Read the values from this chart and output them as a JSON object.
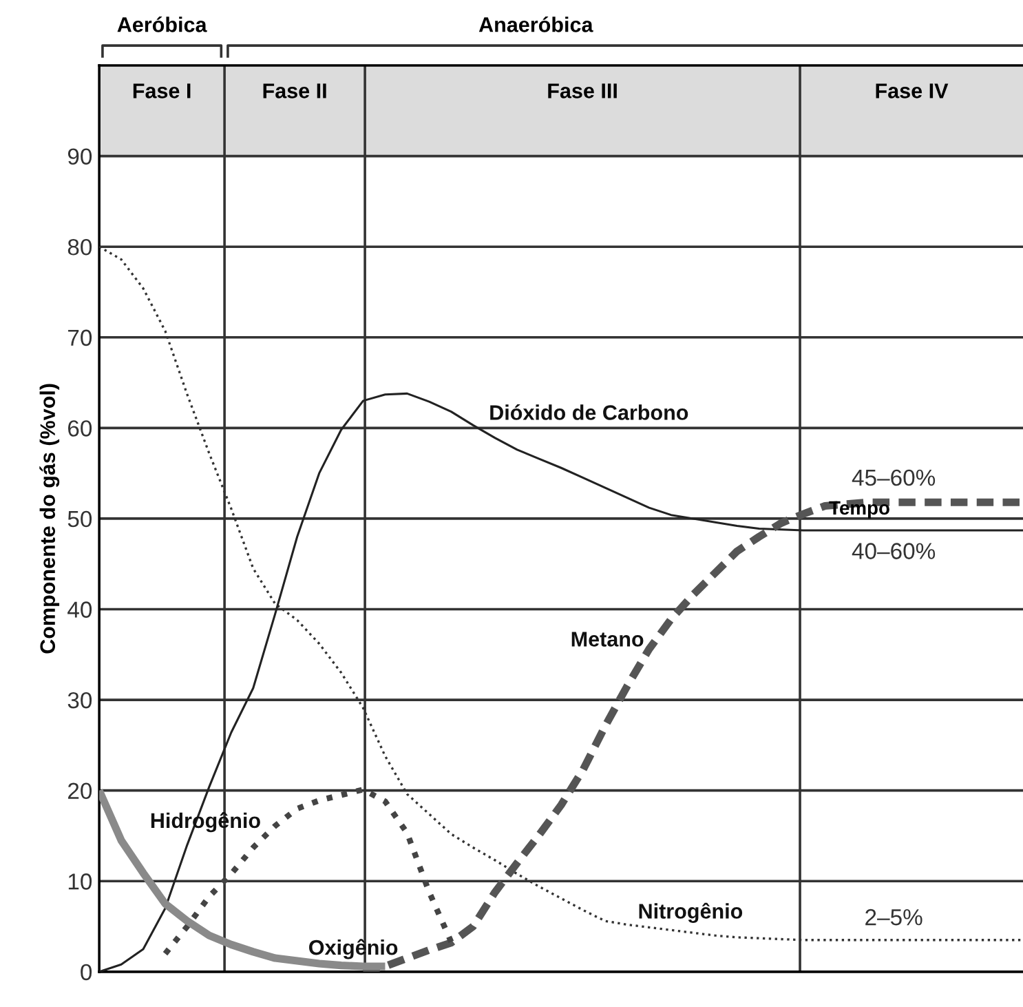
{
  "chart_data": {
    "type": "line",
    "ylabel": "Componente do gás (%vol)",
    "xlabel": "Tempo",
    "categories": [
      null,
      null,
      null,
      null,
      null,
      null,
      null,
      null,
      null,
      null,
      null,
      null,
      null,
      null,
      null,
      null,
      null,
      null,
      null,
      null,
      null,
      null,
      null,
      null,
      null,
      null,
      null,
      null,
      null,
      null,
      null,
      null,
      null,
      null,
      null,
      null,
      null,
      null,
      null,
      null,
      null,
      null,
      null
    ],
    "ylim": [
      0,
      100
    ],
    "yticks": [
      0,
      10,
      20,
      30,
      40,
      50,
      60,
      70,
      80,
      90
    ],
    "tick_labels": "y",
    "grid": "y",
    "legend": false,
    "series": [
      {
        "name": "Nitrogênio",
        "color": "#333333",
        "line_style": "dotted",
        "values": [
          80,
          78.6,
          75.4,
          70.7,
          63.7,
          57.2,
          51.1,
          44.5,
          40.6,
          38.8,
          36.2,
          33.0,
          29.1,
          23.8,
          19.6,
          17.4,
          15.2,
          13.7,
          12.3,
          10.8,
          9.4,
          8.1,
          6.8,
          5.6,
          5.2,
          4.9,
          4.6,
          4.3,
          4.0,
          3.8,
          3.7,
          3.6,
          3.5,
          3.5,
          3.5,
          3.5,
          3.5,
          3.5,
          3.5,
          3.5,
          3.5,
          3.5,
          3.5
        ]
      },
      {
        "name": "Dióxido de Carbono",
        "color": "#222222",
        "line_style": "solid",
        "values": [
          0,
          0.8,
          2.5,
          7,
          14,
          20.4,
          26.4,
          31.3,
          39.5,
          48,
          55,
          59.8,
          63,
          63.7,
          63.8,
          62.9,
          61.8,
          60.3,
          58.9,
          57.6,
          56.6,
          55.6,
          54.5,
          53.4,
          52.3,
          51.2,
          50.4,
          50.0,
          49.6,
          49.2,
          48.9,
          48.8,
          48.7,
          48.7,
          48.7,
          48.7,
          48.7,
          48.7,
          48.7,
          48.7,
          48.7,
          48.7,
          48.7
        ]
      },
      {
        "name": "Metano",
        "color": "#555555",
        "line_style": "dashed",
        "values": [
          null,
          null,
          null,
          null,
          null,
          null,
          null,
          null,
          null,
          null,
          null,
          null,
          0,
          0.6,
          1.5,
          2.4,
          3.2,
          5.0,
          8.8,
          12.0,
          15.1,
          18.4,
          22.3,
          27.1,
          31.5,
          35.6,
          38.9,
          41.6,
          44.0,
          46.4,
          48.0,
          49.5,
          50.5,
          51.4,
          51.6,
          51.8,
          51.8,
          51.8,
          51.8,
          51.8,
          51.8,
          51.8,
          51.8
        ]
      },
      {
        "name": "Hidrogênio",
        "color": "#444444",
        "line_style": "dotted",
        "values": [
          null,
          null,
          null,
          2.0,
          5.0,
          8.3,
          10.8,
          13.7,
          16.1,
          18.0,
          18.9,
          19.5,
          20.1,
          18.8,
          15.3,
          8.8,
          3.3,
          null,
          null,
          null,
          null,
          null,
          null,
          null,
          null,
          null,
          null,
          null,
          null,
          null,
          null,
          null,
          null,
          null,
          null,
          null,
          null,
          null,
          null,
          null,
          null,
          null,
          null
        ]
      },
      {
        "name": "Oxigênio",
        "color": "#8a8a8a",
        "line_style": "solid",
        "values": [
          20,
          14.5,
          10.9,
          7.5,
          5.6,
          4.0,
          3.0,
          2.2,
          1.5,
          1.2,
          0.9,
          0.7,
          0.6,
          0.6,
          null,
          null,
          null,
          null,
          null,
          null,
          null,
          null,
          null,
          null,
          null,
          null,
          null,
          null,
          null,
          null,
          null,
          null,
          null,
          null,
          null,
          null,
          null,
          null,
          null,
          null,
          null,
          null,
          null
        ]
      }
    ],
    "bands": [
      {
        "axis": "y",
        "from": 90,
        "to": 100,
        "label": null,
        "color": "#dcdcdc"
      }
    ],
    "annotations": [
      "Aeróbica",
      "Anaeróbica",
      "Fase I",
      "Fase II",
      "Fase III",
      "Fase IV",
      {
        "text": "45–60%",
        "y": 51.8
      },
      {
        "text": "40–60%",
        "y": 48.7
      },
      {
        "text": "2–5%",
        "y": 3.5
      }
    ]
  }
}
